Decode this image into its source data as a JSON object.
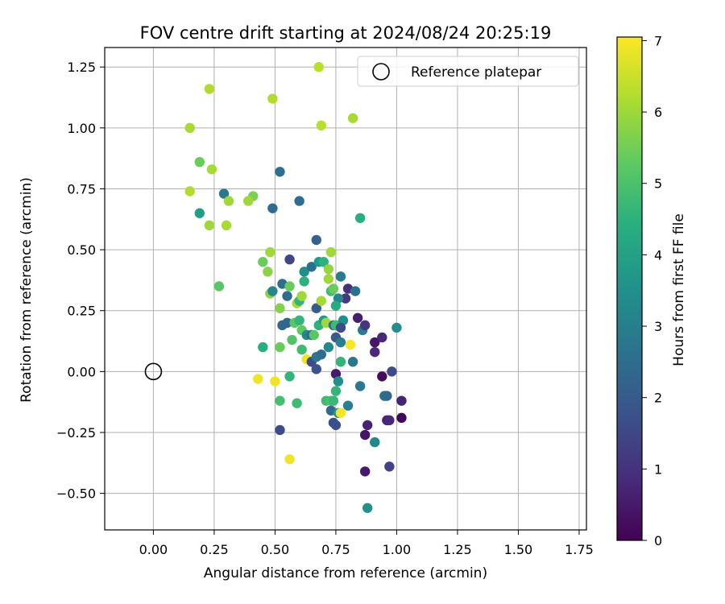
{
  "chart_data": {
    "type": "scatter",
    "title": "FOV centre drift starting at 2024/08/24 20:25:19",
    "xlabel": "Angular distance from reference (arcmin)",
    "ylabel": "Rotation from reference (arcmin)",
    "colorbar_label": "Hours from first FF file",
    "colormap": "viridis",
    "xlim": [
      -0.2,
      1.78
    ],
    "ylim": [
      -0.65,
      1.33
    ],
    "clim": [
      0,
      7.05
    ],
    "xticks": [
      "0.00",
      "0.25",
      "0.50",
      "0.75",
      "1.00",
      "1.25",
      "1.50",
      "1.75"
    ],
    "yticks": [
      "−0.50",
      "−0.25",
      "0.00",
      "0.25",
      "0.50",
      "0.75",
      "1.00",
      "1.25"
    ],
    "colorbar_ticks": [
      "0",
      "1",
      "2",
      "3",
      "4",
      "5",
      "6",
      "7"
    ],
    "grid": true,
    "legend": {
      "placement": "top-right",
      "label": "Reference platepar"
    },
    "reference_point": {
      "x": 0.0,
      "y": 0.0
    },
    "points": [
      {
        "x": 0.15,
        "y": 1.0,
        "c": 6.1
      },
      {
        "x": 0.23,
        "y": 1.16,
        "c": 6.2
      },
      {
        "x": 0.49,
        "y": 1.12,
        "c": 6.2
      },
      {
        "x": 0.68,
        "y": 1.25,
        "c": 6.3
      },
      {
        "x": 0.69,
        "y": 1.01,
        "c": 6.3
      },
      {
        "x": 0.82,
        "y": 1.04,
        "c": 6.1
      },
      {
        "x": 0.19,
        "y": 0.86,
        "c": 5.4
      },
      {
        "x": 0.24,
        "y": 0.83,
        "c": 6.1
      },
      {
        "x": 0.15,
        "y": 0.74,
        "c": 6.2
      },
      {
        "x": 0.29,
        "y": 0.73,
        "c": 2.8
      },
      {
        "x": 0.41,
        "y": 0.72,
        "c": 5.6
      },
      {
        "x": 0.19,
        "y": 0.65,
        "c": 3.9
      },
      {
        "x": 0.31,
        "y": 0.7,
        "c": 6.0
      },
      {
        "x": 0.39,
        "y": 0.7,
        "c": 6.0
      },
      {
        "x": 0.49,
        "y": 0.67,
        "c": 2.5
      },
      {
        "x": 0.52,
        "y": 0.82,
        "c": 2.6
      },
      {
        "x": 0.6,
        "y": 0.7,
        "c": 2.5
      },
      {
        "x": 0.23,
        "y": 0.6,
        "c": 6.0
      },
      {
        "x": 0.3,
        "y": 0.6,
        "c": 6.1
      },
      {
        "x": 0.85,
        "y": 0.63,
        "c": 4.4
      },
      {
        "x": 0.27,
        "y": 0.35,
        "c": 5.2
      },
      {
        "x": 0.45,
        "y": 0.45,
        "c": 5.4
      },
      {
        "x": 0.47,
        "y": 0.41,
        "c": 5.8
      },
      {
        "x": 0.48,
        "y": 0.49,
        "c": 6.0
      },
      {
        "x": 0.48,
        "y": 0.32,
        "c": 5.8
      },
      {
        "x": 0.49,
        "y": 0.33,
        "c": 3.2
      },
      {
        "x": 0.53,
        "y": 0.36,
        "c": 2.5
      },
      {
        "x": 0.55,
        "y": 0.31,
        "c": 2.5
      },
      {
        "x": 0.56,
        "y": 0.46,
        "c": 1.5
      },
      {
        "x": 0.56,
        "y": 0.35,
        "c": 5.4
      },
      {
        "x": 0.52,
        "y": 0.26,
        "c": 5.7
      },
      {
        "x": 0.53,
        "y": 0.19,
        "c": 2.3
      },
      {
        "x": 0.55,
        "y": 0.2,
        "c": 2.3
      },
      {
        "x": 0.59,
        "y": 0.28,
        "c": 6.1
      },
      {
        "x": 0.6,
        "y": 0.29,
        "c": 4.6
      },
      {
        "x": 0.61,
        "y": 0.31,
        "c": 6.0
      },
      {
        "x": 0.62,
        "y": 0.41,
        "c": 3.4
      },
      {
        "x": 0.62,
        "y": 0.37,
        "c": 4.5
      },
      {
        "x": 0.65,
        "y": 0.43,
        "c": 2.6
      },
      {
        "x": 0.67,
        "y": 0.54,
        "c": 2.2
      },
      {
        "x": 0.68,
        "y": 0.45,
        "c": 3.8
      },
      {
        "x": 0.7,
        "y": 0.45,
        "c": 4.5
      },
      {
        "x": 0.72,
        "y": 0.42,
        "c": 5.9
      },
      {
        "x": 0.73,
        "y": 0.49,
        "c": 6.0
      },
      {
        "x": 0.72,
        "y": 0.38,
        "c": 6.0
      },
      {
        "x": 0.73,
        "y": 0.33,
        "c": 4.8
      },
      {
        "x": 0.74,
        "y": 0.34,
        "c": 5.4
      },
      {
        "x": 0.77,
        "y": 0.39,
        "c": 2.9
      },
      {
        "x": 0.8,
        "y": 0.34,
        "c": 1.0
      },
      {
        "x": 0.83,
        "y": 0.33,
        "c": 2.6
      },
      {
        "x": 0.79,
        "y": 0.3,
        "c": 1.2
      },
      {
        "x": 0.76,
        "y": 0.3,
        "c": 3.2
      },
      {
        "x": 0.75,
        "y": 0.27,
        "c": 4.3
      },
      {
        "x": 0.67,
        "y": 0.26,
        "c": 2.1
      },
      {
        "x": 0.69,
        "y": 0.29,
        "c": 6.1
      },
      {
        "x": 0.58,
        "y": 0.2,
        "c": 5.2
      },
      {
        "x": 0.6,
        "y": 0.21,
        "c": 4.6
      },
      {
        "x": 0.61,
        "y": 0.17,
        "c": 5.3
      },
      {
        "x": 0.63,
        "y": 0.15,
        "c": 3.3
      },
      {
        "x": 0.65,
        "y": 0.15,
        "c": 2.3
      },
      {
        "x": 0.66,
        "y": 0.15,
        "c": 5.2
      },
      {
        "x": 0.68,
        "y": 0.19,
        "c": 4.5
      },
      {
        "x": 0.7,
        "y": 0.21,
        "c": 3.8
      },
      {
        "x": 0.71,
        "y": 0.2,
        "c": 6.0
      },
      {
        "x": 0.74,
        "y": 0.19,
        "c": 2.6
      },
      {
        "x": 0.75,
        "y": 0.19,
        "c": 4.8
      },
      {
        "x": 0.78,
        "y": 0.21,
        "c": 3.5
      },
      {
        "x": 0.77,
        "y": 0.18,
        "c": 1.6
      },
      {
        "x": 0.75,
        "y": 0.14,
        "c": 2.0
      },
      {
        "x": 0.77,
        "y": 0.12,
        "c": 3.0
      },
      {
        "x": 0.84,
        "y": 0.22,
        "c": 0.6
      },
      {
        "x": 0.86,
        "y": 0.17,
        "c": 2.9
      },
      {
        "x": 0.87,
        "y": 0.19,
        "c": 1.1
      },
      {
        "x": 0.91,
        "y": 0.12,
        "c": 0.4
      },
      {
        "x": 0.91,
        "y": 0.08,
        "c": 0.8
      },
      {
        "x": 0.94,
        "y": 0.14,
        "c": 0.8
      },
      {
        "x": 0.81,
        "y": 0.11,
        "c": 7.0
      },
      {
        "x": 1.0,
        "y": 0.18,
        "c": 3.4
      },
      {
        "x": 0.45,
        "y": 0.1,
        "c": 4.4
      },
      {
        "x": 0.52,
        "y": 0.1,
        "c": 5.4
      },
      {
        "x": 0.57,
        "y": 0.13,
        "c": 5.1
      },
      {
        "x": 0.61,
        "y": 0.09,
        "c": 4.8
      },
      {
        "x": 0.63,
        "y": 0.05,
        "c": 6.9
      },
      {
        "x": 0.65,
        "y": 0.04,
        "c": 1.6
      },
      {
        "x": 0.67,
        "y": 0.06,
        "c": 2.8
      },
      {
        "x": 0.69,
        "y": 0.07,
        "c": 2.5
      },
      {
        "x": 0.72,
        "y": 0.1,
        "c": 3.3
      },
      {
        "x": 0.67,
        "y": 0.01,
        "c": 1.8
      },
      {
        "x": 0.75,
        "y": -0.01,
        "c": 0.5
      },
      {
        "x": 0.77,
        "y": 0.04,
        "c": 4.6
      },
      {
        "x": 0.82,
        "y": 0.04,
        "c": 2.8
      },
      {
        "x": 0.43,
        "y": -0.03,
        "c": 6.9
      },
      {
        "x": 0.5,
        "y": -0.04,
        "c": 6.9
      },
      {
        "x": 0.56,
        "y": -0.02,
        "c": 4.6
      },
      {
        "x": 0.76,
        "y": -0.04,
        "c": 3.4
      },
      {
        "x": 0.75,
        "y": -0.08,
        "c": 4.6
      },
      {
        "x": 0.52,
        "y": -0.12,
        "c": 4.9
      },
      {
        "x": 0.59,
        "y": -0.13,
        "c": 4.8
      },
      {
        "x": 0.71,
        "y": -0.12,
        "c": 4.8
      },
      {
        "x": 0.73,
        "y": -0.12,
        "c": 5.0
      },
      {
        "x": 0.74,
        "y": -0.12,
        "c": 4.7
      },
      {
        "x": 0.73,
        "y": -0.16,
        "c": 2.4
      },
      {
        "x": 0.76,
        "y": -0.17,
        "c": 3.6
      },
      {
        "x": 0.77,
        "y": -0.17,
        "c": 7.0
      },
      {
        "x": 0.8,
        "y": -0.14,
        "c": 3.0
      },
      {
        "x": 0.85,
        "y": -0.06,
        "c": 2.8
      },
      {
        "x": 0.94,
        "y": -0.02,
        "c": 0.2
      },
      {
        "x": 0.98,
        "y": 0.0,
        "c": 1.6
      },
      {
        "x": 0.95,
        "y": -0.1,
        "c": 2.6
      },
      {
        "x": 0.96,
        "y": -0.1,
        "c": 2.4
      },
      {
        "x": 1.02,
        "y": -0.12,
        "c": 0.7
      },
      {
        "x": 1.02,
        "y": -0.19,
        "c": 0.1
      },
      {
        "x": 0.96,
        "y": -0.2,
        "c": 0.7
      },
      {
        "x": 0.97,
        "y": -0.2,
        "c": 0.8
      },
      {
        "x": 0.74,
        "y": -0.21,
        "c": 1.7
      },
      {
        "x": 0.75,
        "y": -0.22,
        "c": 1.7
      },
      {
        "x": 0.88,
        "y": -0.22,
        "c": 0.7
      },
      {
        "x": 0.87,
        "y": -0.26,
        "c": 0.4
      },
      {
        "x": 0.52,
        "y": -0.24,
        "c": 1.6
      },
      {
        "x": 0.91,
        "y": -0.29,
        "c": 3.3
      },
      {
        "x": 0.56,
        "y": -0.36,
        "c": 6.9
      },
      {
        "x": 0.97,
        "y": -0.39,
        "c": 1.4
      },
      {
        "x": 0.87,
        "y": -0.41,
        "c": 0.5
      },
      {
        "x": 0.88,
        "y": -0.56,
        "c": 3.6
      }
    ]
  }
}
